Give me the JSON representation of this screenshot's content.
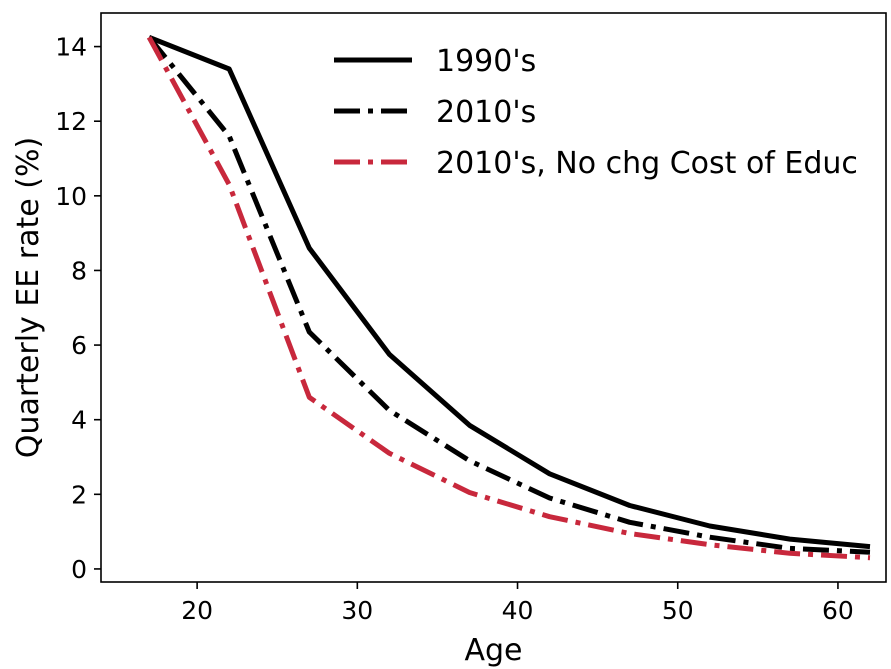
{
  "chart_data": {
    "type": "line",
    "title": "",
    "xlabel": "Age",
    "ylabel": "Quarterly EE rate (%)",
    "xlim": [
      14,
      63
    ],
    "ylim": [
      -0.35,
      14.9
    ],
    "xticks": [
      20,
      30,
      40,
      50,
      60
    ],
    "yticks": [
      0,
      2,
      4,
      6,
      8,
      10,
      12,
      14
    ],
    "grid": false,
    "legend_position": "top-right",
    "x": [
      17,
      22,
      27,
      32,
      37,
      42,
      47,
      52,
      57,
      62
    ],
    "series": [
      {
        "name": "1990's",
        "values": [
          14.25,
          13.4,
          8.6,
          5.75,
          3.85,
          2.55,
          1.7,
          1.15,
          0.8,
          0.6
        ],
        "color": "#000000",
        "style": "solid"
      },
      {
        "name": "2010's",
        "values": [
          14.25,
          11.6,
          6.35,
          4.25,
          2.9,
          1.9,
          1.25,
          0.85,
          0.55,
          0.45
        ],
        "color": "#000000",
        "style": "dashdot"
      },
      {
        "name": "2010's, No chg Cost of Educ",
        "values": [
          14.25,
          10.3,
          4.6,
          3.1,
          2.05,
          1.4,
          0.95,
          0.65,
          0.42,
          0.3
        ],
        "color": "#c8283c",
        "style": "dashdot"
      }
    ]
  }
}
